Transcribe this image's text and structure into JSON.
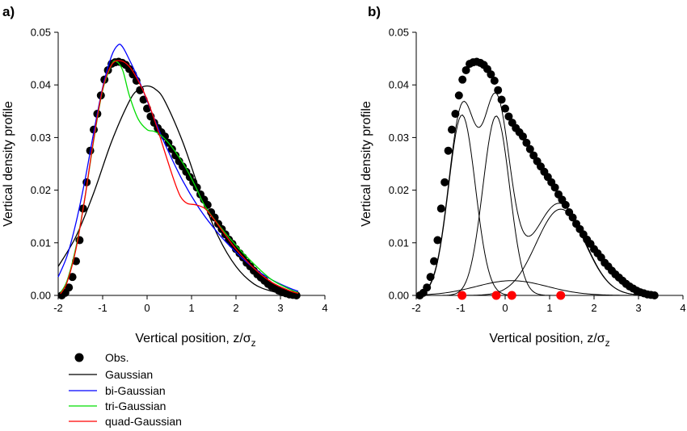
{
  "chart_data": [
    {
      "panel_label": "a)",
      "type": "line",
      "xlabel": "Vertical position, z/σ",
      "xlabel_sub": "z",
      "ylabel": "Vertical density profile",
      "xlim": [
        -2,
        4
      ],
      "ylim": [
        0,
        0.05
      ],
      "xticks": [
        "-2",
        "-1",
        "0",
        "1",
        "2",
        "3",
        "4"
      ],
      "yticks": [
        "0.00",
        "0.01",
        "0.02",
        "0.03",
        "0.04",
        "0.05"
      ],
      "grid": false,
      "legend_position": "below",
      "observed": {
        "name": "Obs.",
        "x": [
          -1.92,
          -1.84,
          -1.76,
          -1.68,
          -1.6,
          -1.52,
          -1.44,
          -1.36,
          -1.28,
          -1.2,
          -1.12,
          -1.04,
          -0.96,
          -0.88,
          -0.8,
          -0.72,
          -0.64,
          -0.56,
          -0.48,
          -0.4,
          -0.32,
          -0.24,
          -0.16,
          -0.08,
          0.0,
          0.08,
          0.16,
          0.24,
          0.32,
          0.4,
          0.48,
          0.56,
          0.64,
          0.72,
          0.8,
          0.88,
          0.96,
          1.04,
          1.12,
          1.2,
          1.28,
          1.36,
          1.44,
          1.52,
          1.6,
          1.68,
          1.76,
          1.84,
          1.92,
          2.0,
          2.08,
          2.16,
          2.24,
          2.32,
          2.4,
          2.48,
          2.56,
          2.64,
          2.72,
          2.8,
          2.88,
          2.96,
          3.04,
          3.12,
          3.2,
          3.28,
          3.36
        ],
        "y": [
          0.0,
          0.0005,
          0.0015,
          0.0035,
          0.0065,
          0.0105,
          0.0165,
          0.0215,
          0.0275,
          0.0315,
          0.0345,
          0.038,
          0.041,
          0.0428,
          0.044,
          0.0443,
          0.0444,
          0.0442,
          0.0438,
          0.043,
          0.042,
          0.0408,
          0.039,
          0.0372,
          0.0355,
          0.034,
          0.0328,
          0.0318,
          0.031,
          0.0302,
          0.029,
          0.0278,
          0.0266,
          0.0255,
          0.0245,
          0.0235,
          0.0225,
          0.0215,
          0.0205,
          0.0192,
          0.0182,
          0.0172,
          0.0158,
          0.0148,
          0.0136,
          0.0126,
          0.0116,
          0.0106,
          0.0098,
          0.0088,
          0.008,
          0.0072,
          0.0062,
          0.0055,
          0.0047,
          0.004,
          0.0034,
          0.0028,
          0.0022,
          0.0017,
          0.0013,
          0.0009,
          0.0006,
          0.0004,
          0.0002,
          0.0001,
          0.0
        ]
      },
      "series": [
        {
          "name": "Gaussian",
          "color": "#000000",
          "x": [
            -2.0,
            -1.6,
            -1.2,
            -0.8,
            -0.4,
            -0.2,
            0.0,
            0.2,
            0.4,
            0.8,
            1.2,
            1.6,
            2.0,
            2.4,
            2.8,
            3.2,
            3.4
          ],
          "y": [
            0.0055,
            0.0112,
            0.0195,
            0.0292,
            0.0369,
            0.0391,
            0.0398,
            0.0391,
            0.0369,
            0.0292,
            0.0195,
            0.0112,
            0.0055,
            0.0022,
            0.0008,
            0.0002,
            0.0001
          ]
        },
        {
          "name": "bi-Gaussian",
          "color": "#0000ff",
          "x": [
            -2.0,
            -1.8,
            -1.6,
            -1.4,
            -1.2,
            -1.0,
            -0.8,
            -0.65,
            -0.55,
            -0.4,
            -0.2,
            0.0,
            0.2,
            0.4,
            0.8,
            1.2,
            1.6,
            2.0,
            2.4,
            2.8,
            3.2,
            3.4
          ],
          "y": [
            0.0035,
            0.0075,
            0.0138,
            0.0218,
            0.031,
            0.0395,
            0.0455,
            0.0476,
            0.0472,
            0.0448,
            0.0412,
            0.037,
            0.0328,
            0.0288,
            0.0218,
            0.0162,
            0.0118,
            0.0082,
            0.0052,
            0.003,
            0.0014,
            0.0008
          ]
        },
        {
          "name": "tri-Gaussian",
          "color": "#00dd00",
          "x": [
            -1.95,
            -1.8,
            -1.6,
            -1.4,
            -1.2,
            -1.0,
            -0.8,
            -0.7,
            -0.55,
            -0.4,
            -0.2,
            0.0,
            0.15,
            0.3,
            0.5,
            0.7,
            0.9,
            1.1,
            1.3,
            1.6,
            2.0,
            2.4,
            2.8,
            3.2,
            3.4
          ],
          "y": [
            0.0005,
            0.0028,
            0.0092,
            0.0185,
            0.0295,
            0.039,
            0.0438,
            0.0445,
            0.0428,
            0.038,
            0.0335,
            0.0315,
            0.0312,
            0.0305,
            0.0288,
            0.0265,
            0.0238,
            0.0205,
            0.017,
            0.0135,
            0.0095,
            0.006,
            0.003,
            0.0012,
            0.0005
          ]
        },
        {
          "name": "quad-Gaussian",
          "color": "#ff0000",
          "x": [
            -1.95,
            -1.8,
            -1.6,
            -1.4,
            -1.2,
            -1.0,
            -0.8,
            -0.6,
            -0.4,
            -0.2,
            0.0,
            0.2,
            0.4,
            0.6,
            0.75,
            0.9,
            1.1,
            1.3,
            1.5,
            1.7,
            2.0,
            2.4,
            2.8,
            3.2,
            3.4
          ],
          "y": [
            0.0003,
            0.0025,
            0.0088,
            0.0185,
            0.0298,
            0.0392,
            0.0438,
            0.0446,
            0.0435,
            0.0408,
            0.0372,
            0.0325,
            0.0272,
            0.022,
            0.0188,
            0.0175,
            0.0172,
            0.0165,
            0.0145,
            0.0122,
            0.0088,
            0.0052,
            0.0025,
            0.0009,
            0.0004
          ]
        }
      ]
    },
    {
      "panel_label": "b)",
      "type": "line",
      "xlabel": "Vertical position, z/σ",
      "xlabel_sub": "z",
      "ylabel": "Vertical density profile",
      "xlim": [
        -2,
        4
      ],
      "ylim": [
        0,
        0.05
      ],
      "xticks": [
        "-2",
        "-1",
        "0",
        "1",
        "2",
        "3",
        "4"
      ],
      "yticks": [
        "0.00",
        "0.01",
        "0.02",
        "0.03",
        "0.04",
        "0.05"
      ],
      "grid": false,
      "observed": {
        "x": [
          -1.92,
          -1.84,
          -1.76,
          -1.68,
          -1.6,
          -1.52,
          -1.44,
          -1.36,
          -1.28,
          -1.2,
          -1.12,
          -1.04,
          -0.96,
          -0.88,
          -0.8,
          -0.72,
          -0.64,
          -0.56,
          -0.48,
          -0.4,
          -0.32,
          -0.24,
          -0.16,
          -0.08,
          0.0,
          0.08,
          0.16,
          0.24,
          0.32,
          0.4,
          0.48,
          0.56,
          0.64,
          0.72,
          0.8,
          0.88,
          0.96,
          1.04,
          1.12,
          1.2,
          1.28,
          1.36,
          1.44,
          1.52,
          1.6,
          1.68,
          1.76,
          1.84,
          1.92,
          2.0,
          2.08,
          2.16,
          2.24,
          2.32,
          2.4,
          2.48,
          2.56,
          2.64,
          2.72,
          2.8,
          2.88,
          2.96,
          3.04,
          3.12,
          3.2,
          3.28,
          3.36
        ],
        "y": [
          0.0,
          0.0005,
          0.0015,
          0.0035,
          0.0065,
          0.0105,
          0.0165,
          0.0215,
          0.0275,
          0.0315,
          0.0345,
          0.038,
          0.041,
          0.0428,
          0.044,
          0.0443,
          0.0444,
          0.0442,
          0.0438,
          0.043,
          0.042,
          0.0408,
          0.039,
          0.0372,
          0.0355,
          0.034,
          0.0328,
          0.0318,
          0.031,
          0.0302,
          0.029,
          0.0278,
          0.0266,
          0.0255,
          0.0245,
          0.0235,
          0.0225,
          0.0215,
          0.0205,
          0.0192,
          0.0182,
          0.0172,
          0.0158,
          0.0148,
          0.0136,
          0.0126,
          0.0116,
          0.0106,
          0.0098,
          0.0088,
          0.008,
          0.0072,
          0.0062,
          0.0055,
          0.0047,
          0.004,
          0.0034,
          0.0028,
          0.0022,
          0.0017,
          0.0013,
          0.0009,
          0.0006,
          0.0004,
          0.0002,
          0.0001,
          0.0
        ]
      },
      "components": [
        {
          "mean": -0.97,
          "amplitude": 0.0343,
          "sigma": 0.3
        },
        {
          "mean": -0.2,
          "amplitude": 0.0341,
          "sigma": 0.3
        },
        {
          "mean": 0.15,
          "amplitude": 0.0028,
          "sigma": 0.8
        },
        {
          "mean": 1.25,
          "amplitude": 0.0164,
          "sigma": 0.55
        }
      ],
      "component_means": [
        -0.97,
        -0.2,
        0.15,
        1.25
      ],
      "marker_color": "#ff0000"
    }
  ]
}
